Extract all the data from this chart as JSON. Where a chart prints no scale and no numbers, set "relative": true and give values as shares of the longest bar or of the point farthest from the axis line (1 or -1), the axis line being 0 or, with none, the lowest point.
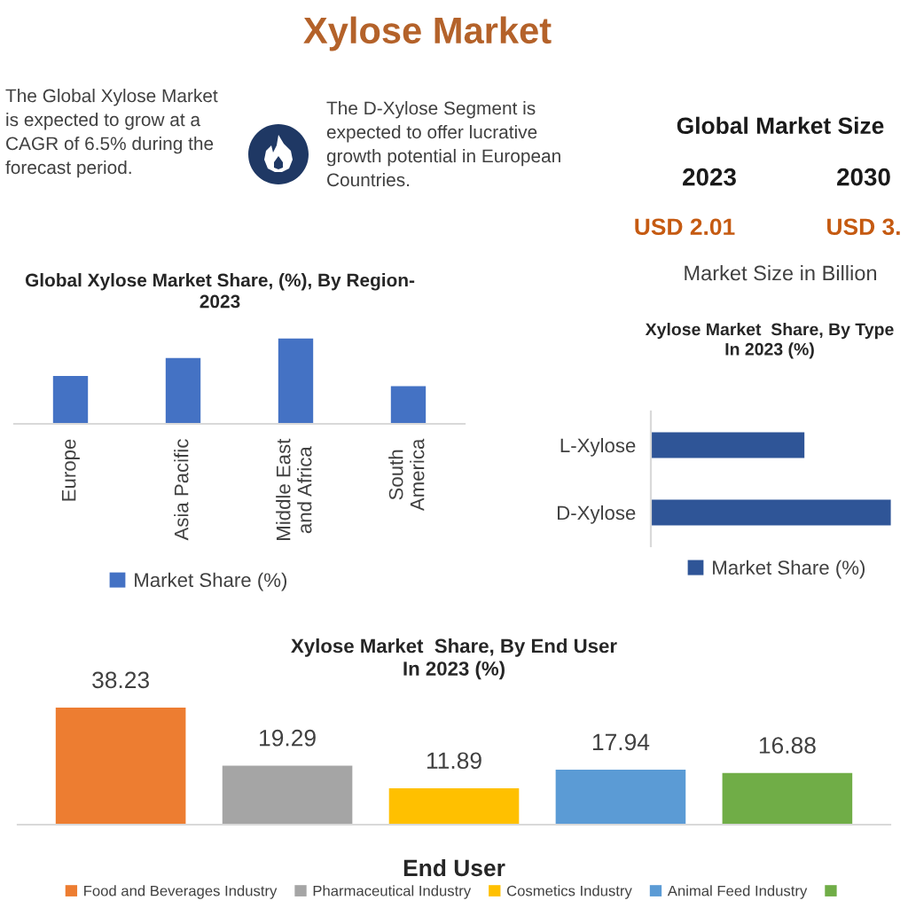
{
  "chart_data": [
    {
      "type": "other",
      "title": "Xylose Market",
      "annotations": [
        "The Global Xylose Market is expected to grow at a CAGR of 6.5% during the forecast period.",
        "The D-Xylose Segment is expected to offer lucrative growth potential in European Countries."
      ]
    },
    {
      "type": "other",
      "title": "Global Market Size",
      "annotations": [
        "2023",
        "2030",
        "USD 2.01",
        "USD 3.",
        "Market Size in Billion"
      ]
    },
    {
      "type": "bar",
      "title": "Global Xylose Market Share, (%), By Region-2023",
      "categories": [
        "Europe",
        "Asia Pacific",
        "Middle East and Africa",
        "South America"
      ],
      "series": [
        {
          "name": "Market Share (%)",
          "color": "#4472c4",
          "values": [
            0.56,
            0.77,
            1,
            0.44
          ]
        }
      ],
      "relative": true,
      "legend": "bottom"
    },
    {
      "type": "bar",
      "orientation": "horizontal",
      "title": "Xylose Market  Share, By Type In 2023 (%)",
      "categories": [
        "L-Xylose",
        "D-Xylose"
      ],
      "series": [
        {
          "name": "Market Share (%)",
          "color": "#2f5597",
          "values": [
            0.64,
            1
          ]
        }
      ],
      "relative": true,
      "legend": "bottom"
    },
    {
      "type": "bar",
      "title": "Xylose Market  Share, By End User In 2023 (%)",
      "xlabel": "End User",
      "categories": [
        null
      ],
      "series": [
        {
          "name": "Food and Beverages Industry",
          "color": "#ed7d31",
          "values": [
            38.23
          ]
        },
        {
          "name": "Pharmaceutical Industry",
          "color": "#a5a5a5",
          "values": [
            19.29
          ]
        },
        {
          "name": "Cosmetics Industry",
          "color": "#ffc000",
          "values": [
            11.89
          ]
        },
        {
          "name": "Animal Feed Industry",
          "color": "#5b9bd5",
          "values": [
            17.94
          ]
        },
        {
          "color": "#70ad47",
          "values": [
            16.88
          ]
        }
      ],
      "data_labels": true,
      "legend": "bottom"
    }
  ]
}
